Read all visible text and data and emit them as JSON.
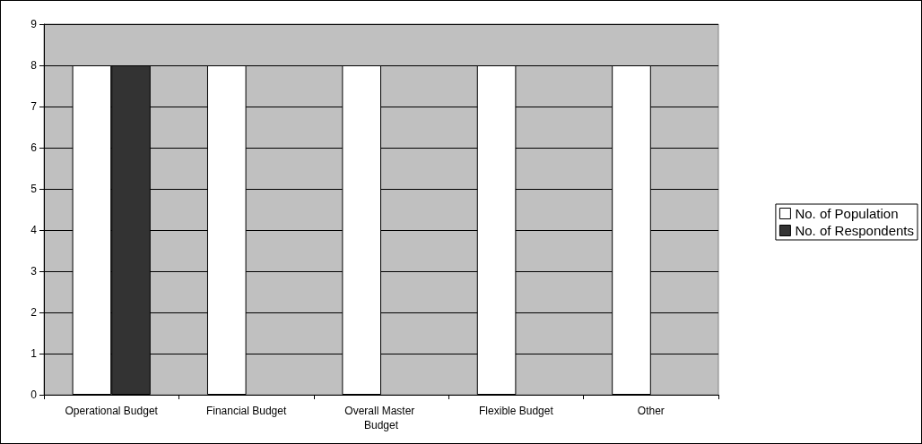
{
  "chart_data": {
    "type": "bar",
    "categories": [
      "Operational Budget",
      "Financial Budget",
      "Overall Master Budget",
      "Flexible Budget",
      "Other"
    ],
    "series": [
      {
        "name": "No. of Population",
        "color": "#ffffff",
        "values": [
          8,
          8,
          8,
          8,
          8
        ]
      },
      {
        "name": "No. of Respondents",
        "color": "#333333",
        "values": [
          8,
          0,
          0,
          0,
          0
        ]
      }
    ],
    "ylim": [
      0,
      9
    ],
    "yticks": [
      0,
      1,
      2,
      3,
      4,
      5,
      6,
      7,
      8,
      9
    ],
    "grid": "y",
    "legend": "right"
  }
}
